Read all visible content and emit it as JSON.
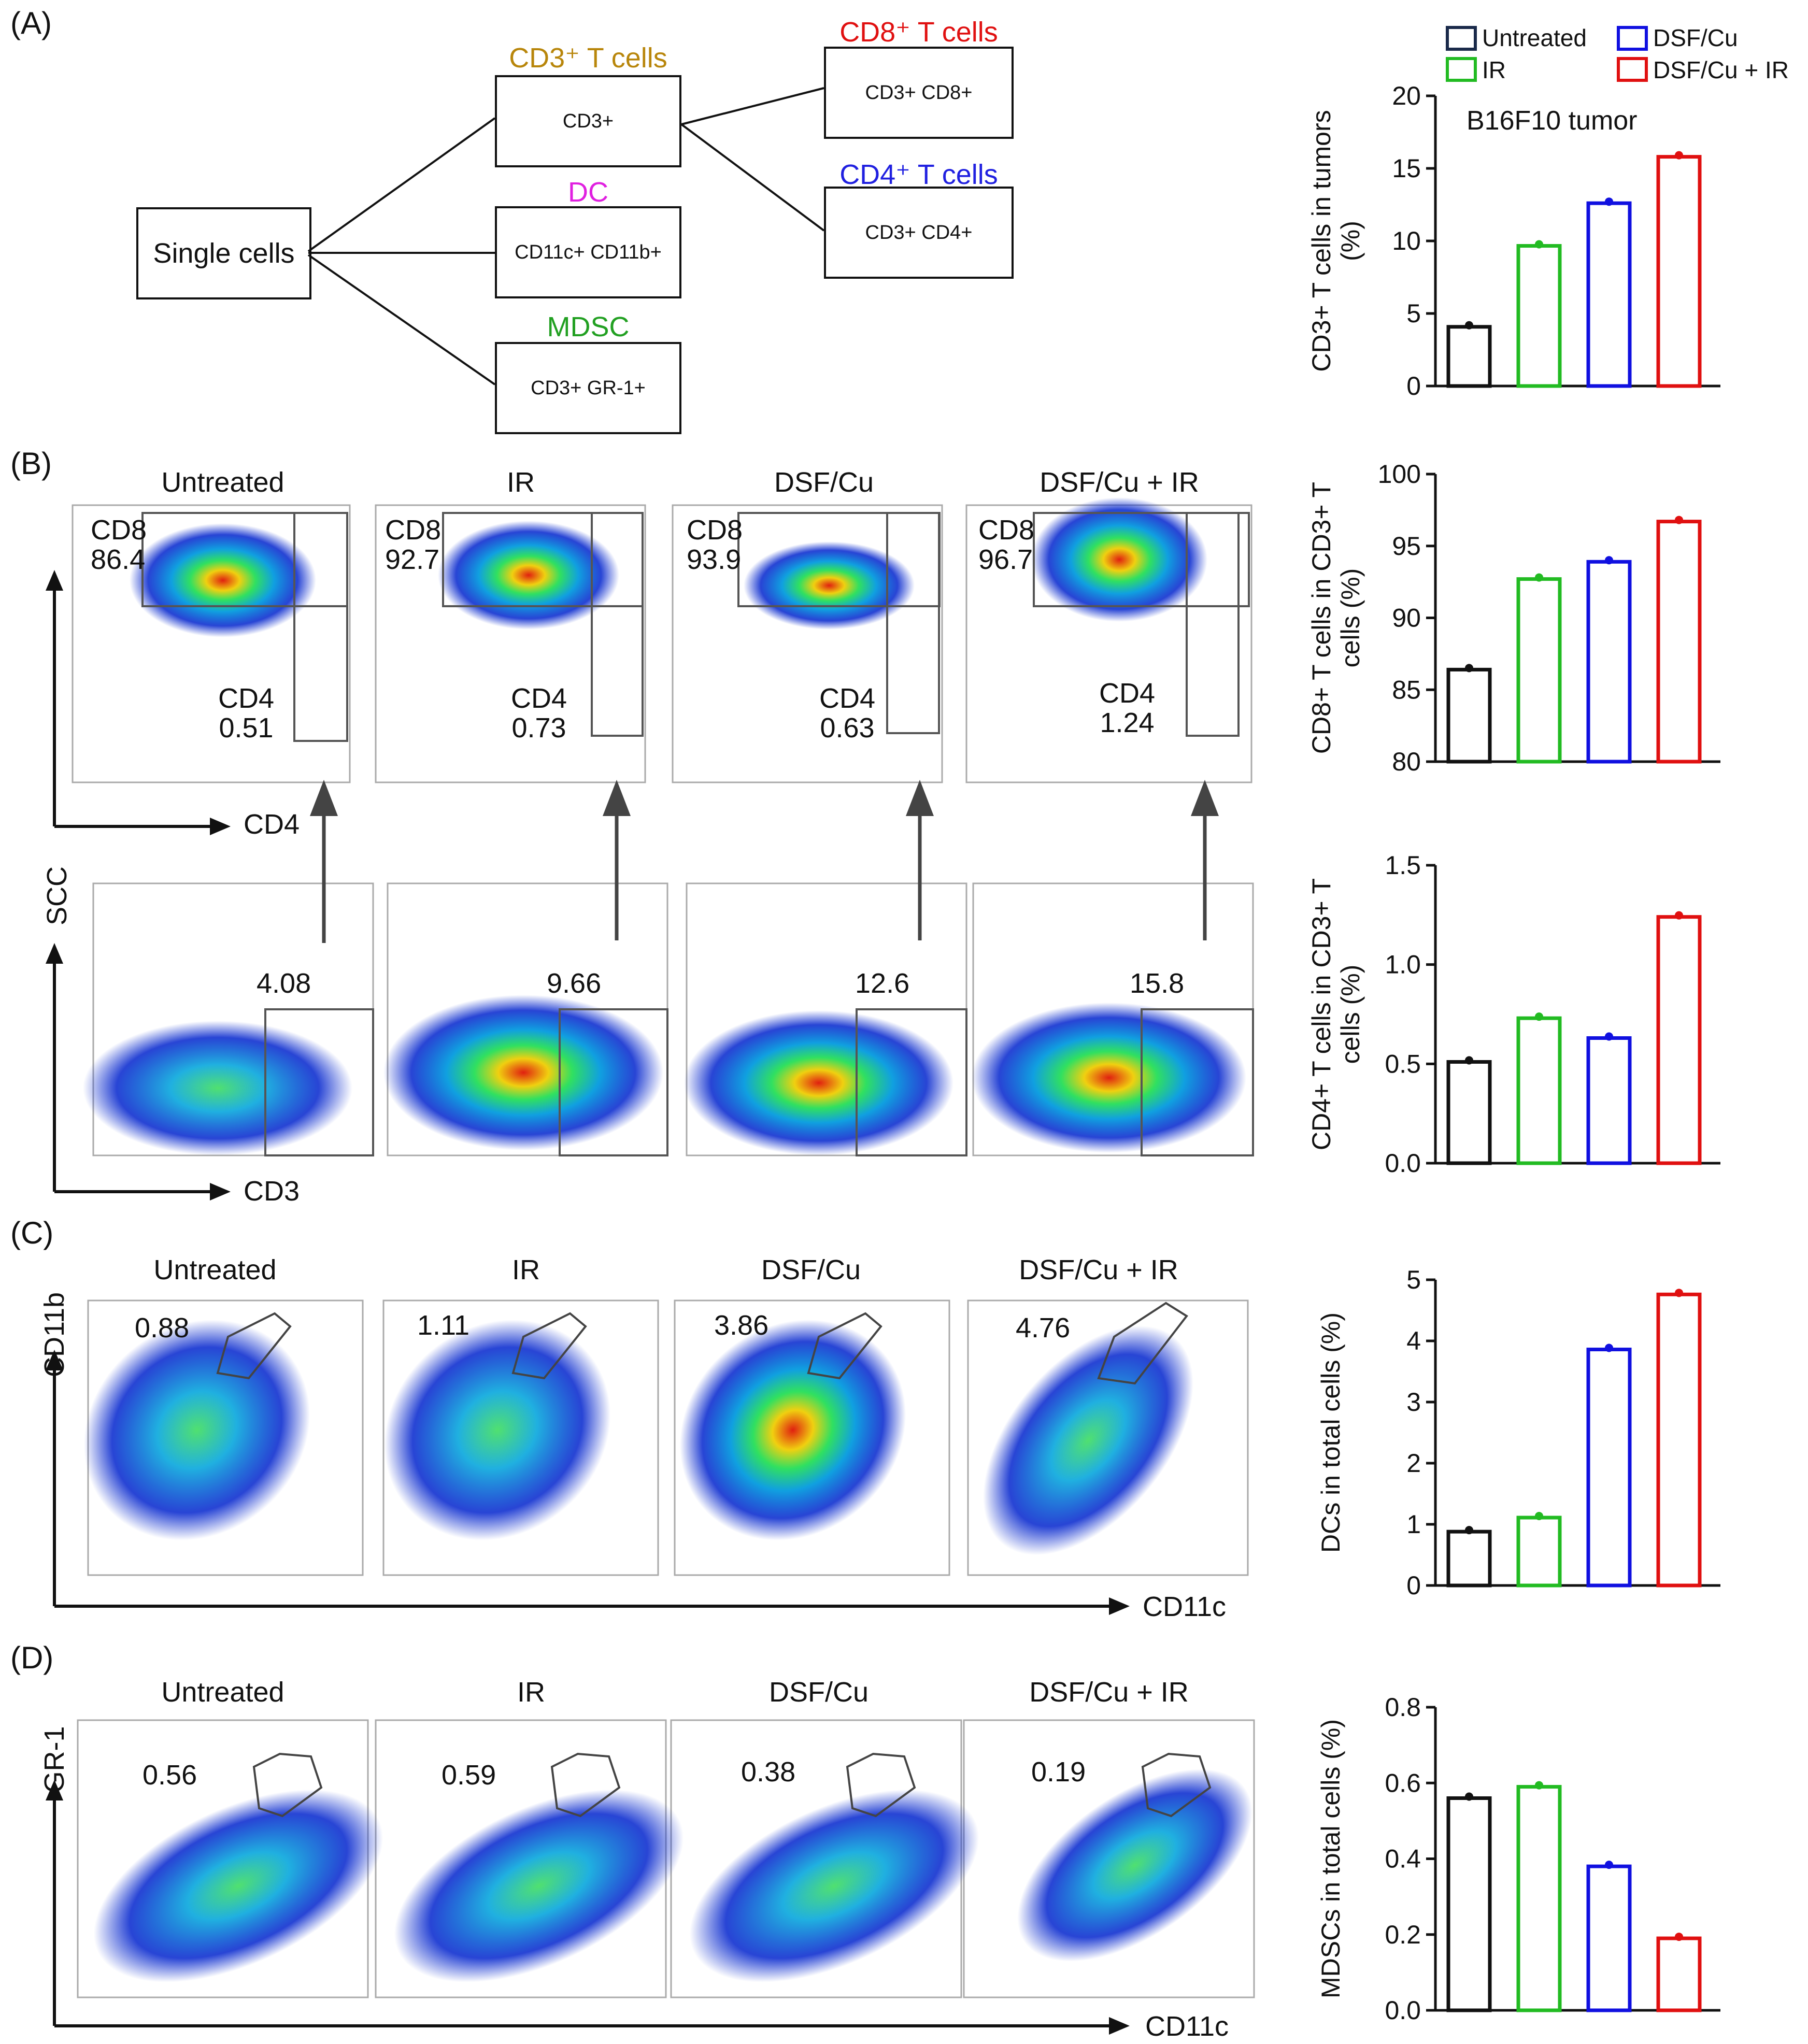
{
  "panelA": {
    "label": "(A)",
    "root": "Single cells",
    "nodes": [
      {
        "title": "CD3⁺ T cells",
        "title_color": "#b8860b",
        "box": "CD3+"
      },
      {
        "title": "DC",
        "title_color": "#e020e0",
        "box": "CD11c+ CD11b+"
      },
      {
        "title": "MDSC",
        "title_color": "#22a022",
        "box": "CD3+ GR-1+"
      },
      {
        "title": "CD8⁺ T cells",
        "title_color": "#e01010",
        "box": "CD3+ CD8+"
      },
      {
        "title": "CD4⁺ T cells",
        "title_color": "#2020e0",
        "box": "CD3+ CD4+"
      }
    ]
  },
  "legend": [
    {
      "label": "Untreated",
      "color": "#1a2a4a"
    },
    {
      "label": "DSF/Cu",
      "color": "#1010e0"
    },
    {
      "label": "IR",
      "color": "#22bb22"
    },
    {
      "label": "DSF/Cu + IR",
      "color": "#e01010"
    }
  ],
  "panelB": {
    "label": "(B)",
    "groups": [
      "Untreated",
      "IR",
      "DSF/Cu",
      "DSF/Cu  +  IR"
    ],
    "cd8_label": "CD8",
    "cd4_label": "CD4",
    "cd8_values": [
      "86.4",
      "92.7",
      "93.9",
      "96.7"
    ],
    "cd4_values": [
      "0.51",
      "0.73",
      "0.63",
      "1.24"
    ],
    "cd3_values": [
      "4.08",
      "9.66",
      "12.6",
      "15.8"
    ],
    "axis_cd4": "CD4",
    "axis_cd3": "CD3",
    "axis_scc": "SCC"
  },
  "panelC": {
    "label": "(C)",
    "groups": [
      "Untreated",
      "IR",
      "DSF/Cu",
      "DSF/Cu  + IR"
    ],
    "values": [
      "0.88",
      "1.11",
      "3.86",
      "4.76"
    ],
    "axis_y": "CD11b",
    "axis_x": "CD11c"
  },
  "panelD": {
    "label": "(D)",
    "groups": [
      "Untreated",
      "IR",
      "DSF/Cu",
      "DSF/Cu  + IR"
    ],
    "values": [
      "0.56",
      "0.59",
      "0.38",
      "0.19"
    ],
    "axis_y": "GR-1",
    "axis_x": "CD11c"
  },
  "chart_data": [
    {
      "type": "bar",
      "title": "B16F10 tumor",
      "categories": [
        "Untreated",
        "IR",
        "DSF/Cu",
        "DSF/Cu + IR"
      ],
      "values": [
        4.08,
        9.66,
        12.6,
        15.8
      ],
      "ylabel": "CD3+ T cells in tumors (%)",
      "ylim": [
        0,
        20
      ],
      "yticks": [
        "0",
        "5",
        "10",
        "15",
        "20"
      ]
    },
    {
      "type": "bar",
      "title": "",
      "categories": [
        "Untreated",
        "IR",
        "DSF/Cu",
        "DSF/Cu + IR"
      ],
      "values": [
        86.4,
        92.7,
        93.9,
        96.7
      ],
      "ylabel": "CD8+ T cells in CD3+ T cells (%)",
      "ylim": [
        80,
        100
      ],
      "yticks": [
        "80",
        "85",
        "90",
        "95",
        "100"
      ]
    },
    {
      "type": "bar",
      "title": "",
      "categories": [
        "Untreated",
        "IR",
        "DSF/Cu",
        "DSF/Cu + IR"
      ],
      "values": [
        0.51,
        0.73,
        0.63,
        1.24
      ],
      "ylabel": "CD4+ T cells in CD3+ T cells (%)",
      "ylim": [
        0,
        1.5
      ],
      "yticks": [
        "0.0",
        "0.5",
        "1.0",
        "1.5"
      ]
    },
    {
      "type": "bar",
      "title": "",
      "categories": [
        "Untreated",
        "IR",
        "DSF/Cu",
        "DSF/Cu + IR"
      ],
      "values": [
        0.88,
        1.11,
        3.86,
        4.76
      ],
      "ylabel": "DCs in total cells (%)",
      "ylim": [
        0,
        5
      ],
      "yticks": [
        "0",
        "1",
        "2",
        "3",
        "4",
        "5"
      ]
    },
    {
      "type": "bar",
      "title": "",
      "categories": [
        "Untreated",
        "IR",
        "DSF/Cu",
        "DSF/Cu + IR"
      ],
      "values": [
        0.56,
        0.59,
        0.38,
        0.19
      ],
      "ylabel": "MDSCs in total cells (%)",
      "ylim": [
        0,
        0.8
      ],
      "yticks": [
        "0.0",
        "0.2",
        "0.4",
        "0.6",
        "0.8"
      ]
    }
  ]
}
